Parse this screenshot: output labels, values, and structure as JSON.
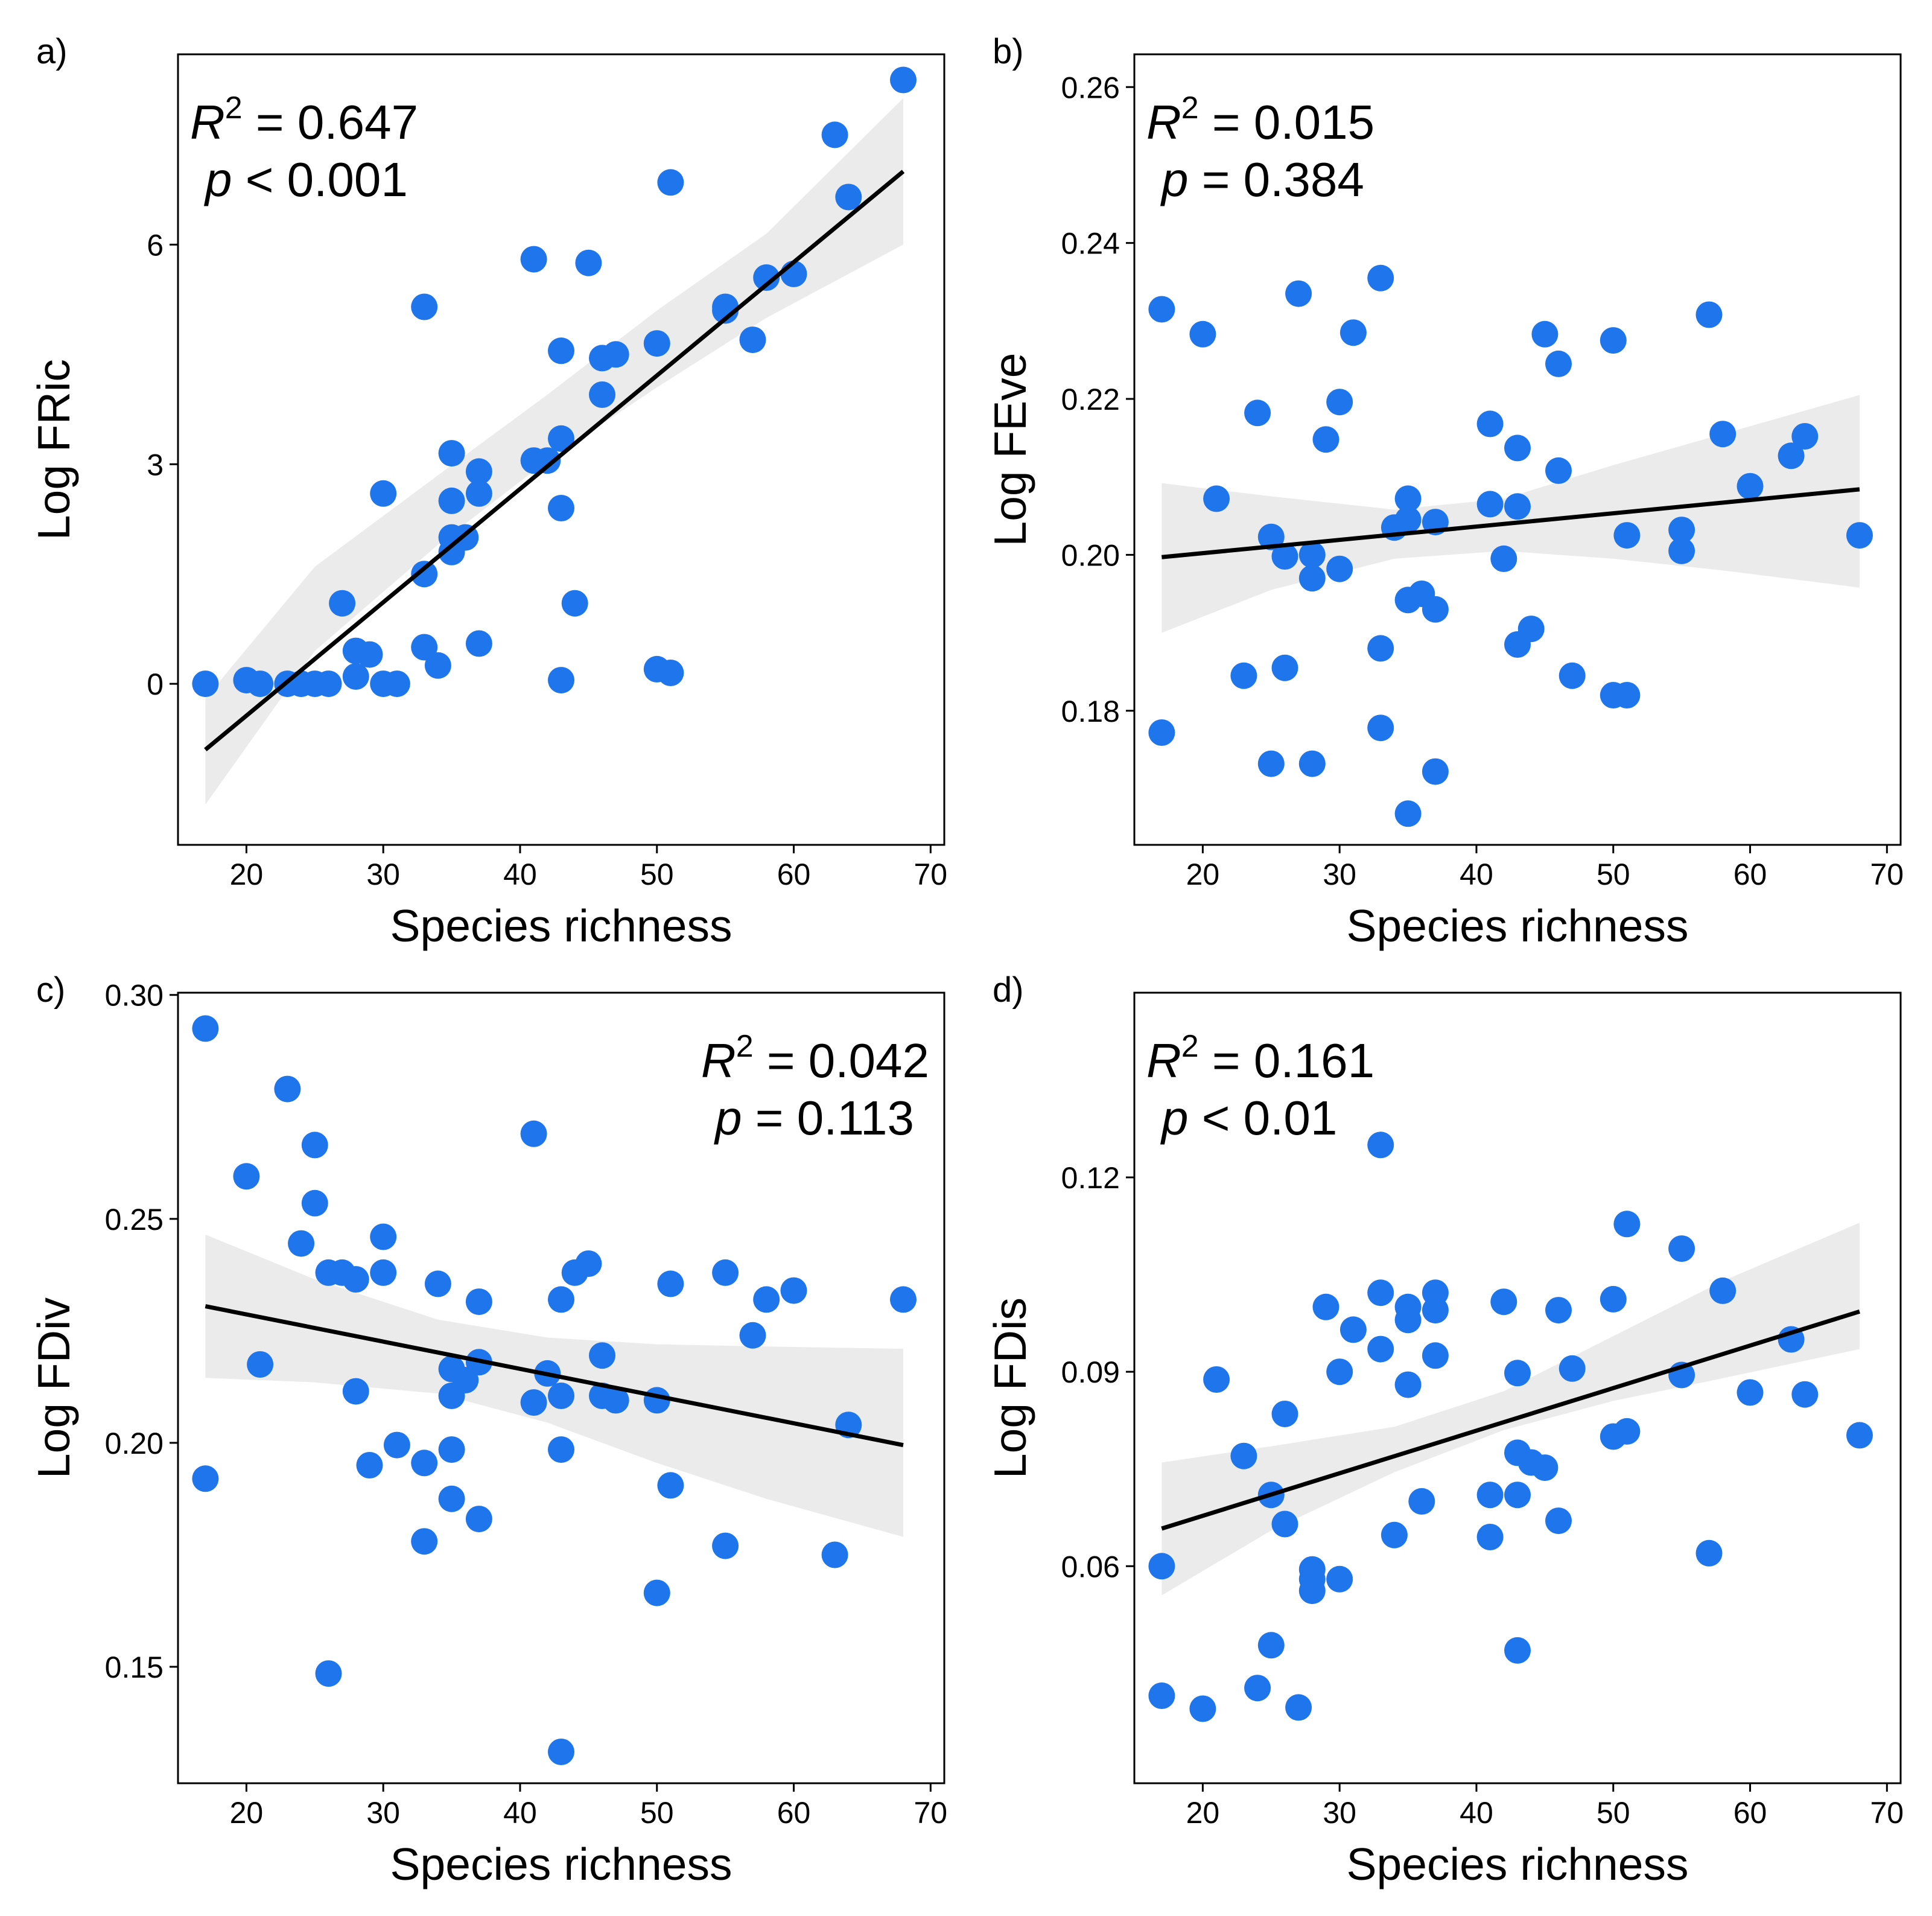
{
  "chart_data": [
    {
      "type": "scatter",
      "tag": "a)",
      "xlabel": "Species richness",
      "ylabel": "Log FRic",
      "xlim": [
        15,
        71
      ],
      "ylim": [
        -2.2,
        8.6
      ],
      "xticks": [
        20,
        30,
        40,
        50,
        60,
        70
      ],
      "yticks": [
        0,
        3,
        6
      ],
      "ytick_labels": [
        "0",
        "3",
        "6"
      ],
      "stats": {
        "r2_prefix": "R",
        "r2_sup": "2",
        "r2_text": " = 0.647",
        "p_sym": "p",
        "p_text": " < 0.001"
      },
      "stats_align": "left",
      "fit": {
        "x": [
          17,
          68
        ],
        "y": [
          -0.9,
          7.0
        ]
      },
      "band": {
        "x": [
          17,
          25,
          34,
          42,
          50,
          58,
          68
        ],
        "lower": [
          -1.65,
          0.45,
          1.9,
          3.05,
          4.05,
          5.0,
          6.0
        ],
        "upper": [
          -0.2,
          1.6,
          2.85,
          3.95,
          5.1,
          6.15,
          8.0
        ]
      },
      "points": [
        [
          17,
          0.0
        ],
        [
          20,
          0.05
        ],
        [
          21,
          0.0
        ],
        [
          23,
          0.0
        ],
        [
          24,
          0.0
        ],
        [
          25,
          0.0
        ],
        [
          26,
          0.0
        ],
        [
          27,
          1.1
        ],
        [
          28,
          0.45
        ],
        [
          28,
          0.1
        ],
        [
          29,
          0.4
        ],
        [
          30,
          0.0
        ],
        [
          30,
          2.6
        ],
        [
          31,
          0.0
        ],
        [
          33,
          5.15
        ],
        [
          33,
          1.5
        ],
        [
          33,
          0.5
        ],
        [
          34,
          0.25
        ],
        [
          35,
          3.15
        ],
        [
          35,
          2.5
        ],
        [
          35,
          2.0
        ],
        [
          35,
          1.8
        ],
        [
          36,
          2.0
        ],
        [
          37,
          2.9
        ],
        [
          37,
          2.6
        ],
        [
          37,
          0.55
        ],
        [
          41,
          5.8
        ],
        [
          41,
          3.05
        ],
        [
          42,
          3.05
        ],
        [
          43,
          4.55
        ],
        [
          43,
          3.35
        ],
        [
          43,
          2.4
        ],
        [
          43,
          0.05
        ],
        [
          44,
          1.1
        ],
        [
          45,
          5.75
        ],
        [
          46,
          4.45
        ],
        [
          46,
          3.95
        ],
        [
          47,
          4.5
        ],
        [
          50,
          4.65
        ],
        [
          50,
          0.2
        ],
        [
          51,
          6.85
        ],
        [
          51,
          0.15
        ],
        [
          55,
          5.15
        ],
        [
          55,
          5.1
        ],
        [
          57,
          4.7
        ],
        [
          58,
          5.55
        ],
        [
          60,
          5.6
        ],
        [
          63,
          7.5
        ],
        [
          64,
          6.65
        ],
        [
          68,
          8.25
        ]
      ]
    },
    {
      "type": "scatter",
      "tag": "b)",
      "xlabel": "Species richness",
      "ylabel": "Log FEve",
      "xlim": [
        15,
        71
      ],
      "ylim": [
        0.1628,
        0.2642
      ],
      "xticks": [
        20,
        30,
        40,
        50,
        60,
        70
      ],
      "yticks": [
        0.18,
        0.2,
        0.22,
        0.24,
        0.26
      ],
      "ytick_labels": [
        "0.18",
        "0.20",
        "0.22",
        "0.24",
        "0.26"
      ],
      "stats": {
        "r2_prefix": "R",
        "r2_sup": "2",
        "r2_text": " = 0.015",
        "p_sym": "p",
        "p_text": " = 0.384"
      },
      "stats_align": "left",
      "fit": {
        "x": [
          17,
          68
        ],
        "y": [
          0.1997,
          0.2084
        ]
      },
      "band": {
        "x": [
          17,
          25,
          34,
          42,
          50,
          58,
          68
        ],
        "lower": [
          0.19,
          0.1955,
          0.1995,
          0.2005,
          0.1995,
          0.198,
          0.1958
        ],
        "upper": [
          0.2092,
          0.2075,
          0.2058,
          0.2072,
          0.2115,
          0.2155,
          0.2205
        ]
      },
      "points": [
        [
          17,
          0.2315
        ],
        [
          17,
          0.1772
        ],
        [
          20,
          0.2283
        ],
        [
          21,
          0.2072
        ],
        [
          23,
          0.1845
        ],
        [
          24,
          0.2182
        ],
        [
          25,
          0.2023
        ],
        [
          25,
          0.1732
        ],
        [
          26,
          0.1998
        ],
        [
          26,
          0.1855
        ],
        [
          27,
          0.2335
        ],
        [
          28,
          0.2
        ],
        [
          28,
          0.197
        ],
        [
          28,
          0.1732
        ],
        [
          29,
          0.2148
        ],
        [
          30,
          0.2196
        ],
        [
          30,
          0.1982
        ],
        [
          31,
          0.2285
        ],
        [
          33,
          0.2355
        ],
        [
          33,
          0.188
        ],
        [
          33,
          0.1778
        ],
        [
          34,
          0.2035
        ],
        [
          35,
          0.2072
        ],
        [
          35,
          0.2045
        ],
        [
          35,
          0.1942
        ],
        [
          36,
          0.195
        ],
        [
          37,
          0.2042
        ],
        [
          37,
          0.193
        ],
        [
          37,
          0.1722
        ],
        [
          35,
          0.1668
        ],
        [
          41,
          0.2168
        ],
        [
          41,
          0.2065
        ],
        [
          42,
          0.1995
        ],
        [
          43,
          0.2137
        ],
        [
          43,
          0.2062
        ],
        [
          43,
          0.1885
        ],
        [
          44,
          0.1905
        ],
        [
          45,
          0.2283
        ],
        [
          46,
          0.2245
        ],
        [
          46,
          0.2108
        ],
        [
          47,
          0.1845
        ],
        [
          50,
          0.2275
        ],
        [
          50,
          0.182
        ],
        [
          51,
          0.2025
        ],
        [
          51,
          0.182
        ],
        [
          55,
          0.2032
        ],
        [
          55,
          0.2005
        ],
        [
          57,
          0.2308
        ],
        [
          58,
          0.2155
        ],
        [
          60,
          0.2088
        ],
        [
          63,
          0.2127
        ],
        [
          64,
          0.2152
        ],
        [
          68,
          0.2025
        ]
      ]
    },
    {
      "type": "scatter",
      "tag": "c)",
      "xlabel": "Species richness",
      "ylabel": "Log FDiv",
      "xlim": [
        15,
        71
      ],
      "ylim": [
        0.124,
        0.3005
      ],
      "xticks": [
        20,
        30,
        40,
        50,
        60,
        70
      ],
      "yticks": [
        0.15,
        0.2,
        0.25,
        0.3
      ],
      "ytick_labels": [
        "0.15",
        "0.20",
        "0.25",
        "0.30"
      ],
      "stats": {
        "r2_prefix": "R",
        "r2_sup": "2",
        "r2_text": " = 0.042",
        "p_sym": "p",
        "p_text": " = 0.113"
      },
      "stats_align": "right",
      "fit": {
        "x": [
          17,
          68
        ],
        "y": [
          0.2305,
          0.1995
        ]
      },
      "band": {
        "x": [
          17,
          25,
          34,
          42,
          50,
          58,
          68
        ],
        "lower": [
          0.2145,
          0.2135,
          0.211,
          0.2045,
          0.1955,
          0.1875,
          0.179
        ],
        "upper": [
          0.2465,
          0.2365,
          0.2275,
          0.2235,
          0.222,
          0.2215,
          0.221
        ]
      },
      "points": [
        [
          17,
          0.2925
        ],
        [
          17,
          0.192
        ],
        [
          20,
          0.2595
        ],
        [
          21,
          0.2175
        ],
        [
          23,
          0.279
        ],
        [
          24,
          0.2445
        ],
        [
          25,
          0.2665
        ],
        [
          25,
          0.2535
        ],
        [
          26,
          0.238
        ],
        [
          26,
          0.1485
        ],
        [
          27,
          0.238
        ],
        [
          28,
          0.2365
        ],
        [
          28,
          0.2115
        ],
        [
          29,
          0.195
        ],
        [
          30,
          0.246
        ],
        [
          30,
          0.238
        ],
        [
          31,
          0.1995
        ],
        [
          33,
          0.1955
        ],
        [
          33,
          0.178
        ],
        [
          34,
          0.2355
        ],
        [
          35,
          0.2165
        ],
        [
          35,
          0.2105
        ],
        [
          35,
          0.1985
        ],
        [
          35,
          0.1875
        ],
        [
          36,
          0.214
        ],
        [
          37,
          0.2315
        ],
        [
          37,
          0.218
        ],
        [
          37,
          0.183
        ],
        [
          41,
          0.269
        ],
        [
          41,
          0.209
        ],
        [
          42,
          0.2155
        ],
        [
          43,
          0.232
        ],
        [
          43,
          0.2105
        ],
        [
          43,
          0.1985
        ],
        [
          43,
          0.131
        ],
        [
          44,
          0.238
        ],
        [
          45,
          0.24
        ],
        [
          46,
          0.2195
        ],
        [
          46,
          0.2105
        ],
        [
          47,
          0.2095
        ],
        [
          50,
          0.2095
        ],
        [
          50,
          0.1665
        ],
        [
          51,
          0.2355
        ],
        [
          51,
          0.1905
        ],
        [
          55,
          0.238
        ],
        [
          55,
          0.177
        ],
        [
          57,
          0.224
        ],
        [
          58,
          0.232
        ],
        [
          60,
          0.234
        ],
        [
          63,
          0.175
        ],
        [
          64,
          0.204
        ],
        [
          68,
          0.232
        ]
      ]
    },
    {
      "type": "scatter",
      "tag": "d)",
      "xlabel": "Species richness",
      "ylabel": "Log FDis",
      "xlim": [
        15,
        71
      ],
      "ylim": [
        0.0265,
        0.1485
      ],
      "xticks": [
        20,
        30,
        40,
        50,
        60,
        70
      ],
      "yticks": [
        0.06,
        0.09,
        0.12
      ],
      "ytick_labels": [
        "0.06",
        "0.09",
        "0.12"
      ],
      "stats": {
        "r2_prefix": "R",
        "r2_sup": "2",
        "r2_text": " = 0.161",
        "p_sym": "p",
        "p_text": " < 0.01"
      },
      "stats_align": "left",
      "fit": {
        "x": [
          17,
          68
        ],
        "y": [
          0.0658,
          0.0993
        ]
      },
      "band": {
        "x": [
          17,
          25,
          34,
          42,
          50,
          58,
          68
        ],
        "lower": [
          0.0555,
          0.0655,
          0.0745,
          0.081,
          0.0855,
          0.089,
          0.0935
        ],
        "upper": [
          0.076,
          0.0785,
          0.0815,
          0.087,
          0.0955,
          0.104,
          0.113
        ]
      },
      "points": [
        [
          17,
          0.06
        ],
        [
          17,
          0.04
        ],
        [
          20,
          0.038
        ],
        [
          21,
          0.0888
        ],
        [
          23,
          0.077
        ],
        [
          24,
          0.0412
        ],
        [
          25,
          0.071
        ],
        [
          25,
          0.0478
        ],
        [
          26,
          0.0835
        ],
        [
          26,
          0.0665
        ],
        [
          27,
          0.0382
        ],
        [
          28,
          0.0595
        ],
        [
          28,
          0.058
        ],
        [
          28,
          0.0562
        ],
        [
          29,
          0.1
        ],
        [
          30,
          0.09
        ],
        [
          30,
          0.058
        ],
        [
          31,
          0.0965
        ],
        [
          33,
          0.125
        ],
        [
          33,
          0.1022
        ],
        [
          33,
          0.0935
        ],
        [
          34,
          0.0648
        ],
        [
          35,
          0.1
        ],
        [
          35,
          0.098
        ],
        [
          35,
          0.088
        ],
        [
          36,
          0.07
        ],
        [
          37,
          0.1022
        ],
        [
          37,
          0.0995
        ],
        [
          37,
          0.0925
        ],
        [
          41,
          0.071
        ],
        [
          41,
          0.0645
        ],
        [
          42,
          0.1008
        ],
        [
          43,
          0.0898
        ],
        [
          43,
          0.0775
        ],
        [
          43,
          0.071
        ],
        [
          43,
          0.047
        ],
        [
          44,
          0.076
        ],
        [
          45,
          0.0752
        ],
        [
          46,
          0.0995
        ],
        [
          46,
          0.067
        ],
        [
          47,
          0.0905
        ],
        [
          50,
          0.1012
        ],
        [
          50,
          0.08
        ],
        [
          51,
          0.1128
        ],
        [
          51,
          0.0808
        ],
        [
          55,
          0.109
        ],
        [
          55,
          0.0895
        ],
        [
          57,
          0.062
        ],
        [
          58,
          0.1025
        ],
        [
          60,
          0.0868
        ],
        [
          63,
          0.095
        ],
        [
          64,
          0.0865
        ],
        [
          68,
          0.0802
        ]
      ]
    }
  ]
}
